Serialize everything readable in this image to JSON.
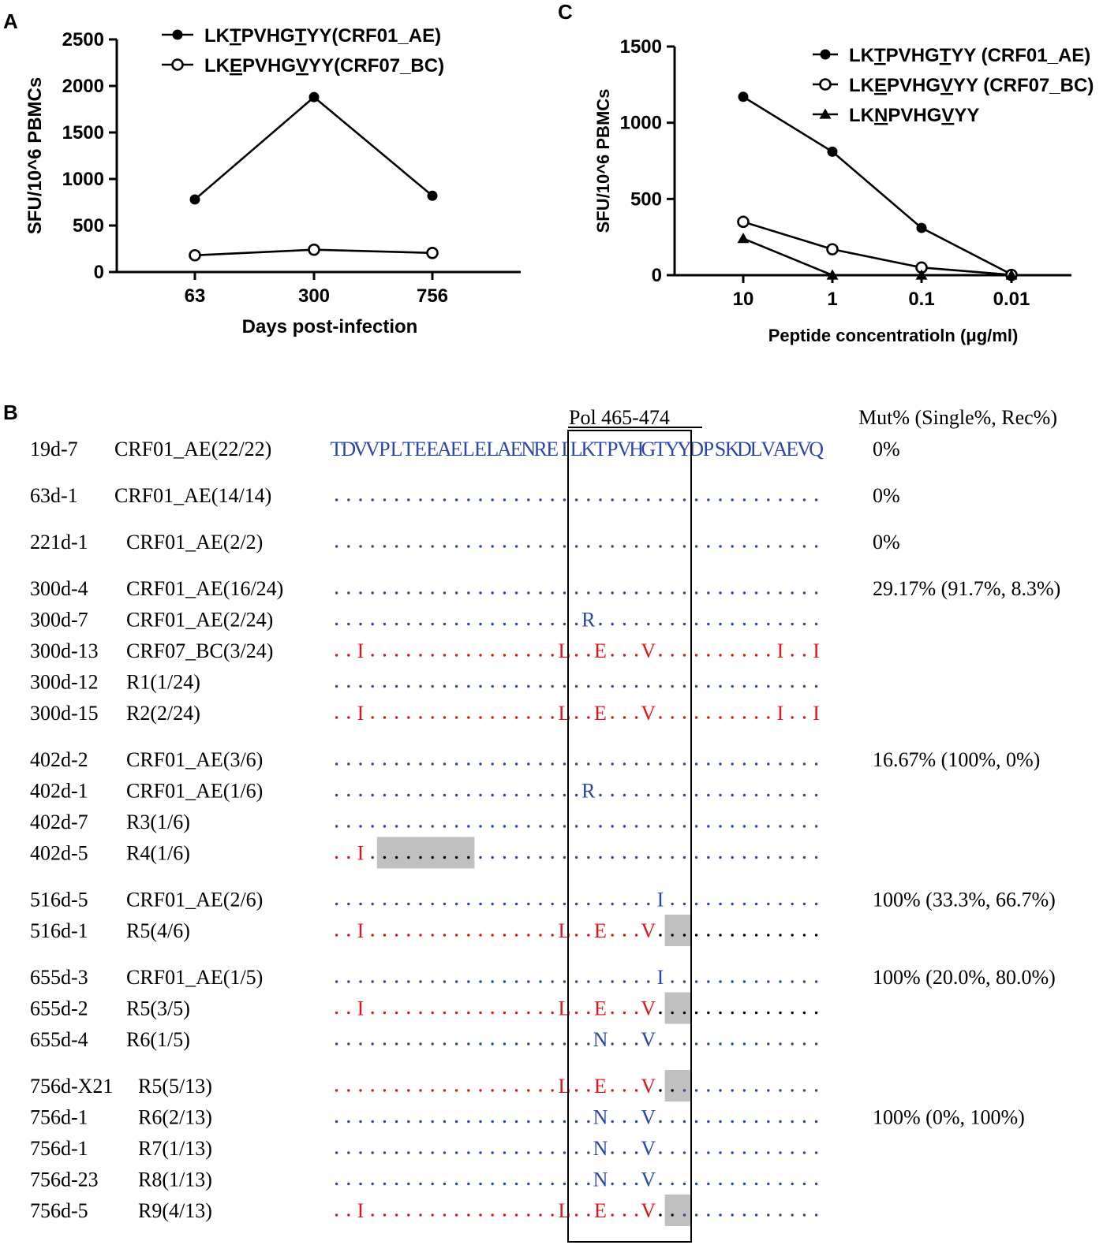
{
  "panel_labels": {
    "a": "A",
    "b": "B",
    "c": "C"
  },
  "colors": {
    "blue": "#2a47a8",
    "red": "#e0141b",
    "black": "#000000",
    "gray": "#c0c0c0"
  },
  "chart_data": [
    {
      "id": "A",
      "type": "line",
      "categories": [
        "63",
        "300",
        "756"
      ],
      "series": [
        {
          "name": "LKTPVHGTYY(CRF01_AE)",
          "marker": "filled-circle",
          "values": [
            780,
            1880,
            820
          ]
        },
        {
          "name": "LKEPVHGVYY(CRF07_BC)",
          "marker": "open-circle",
          "values": [
            180,
            240,
            205
          ]
        }
      ],
      "ylabel": "SFU/10^6 PBMCs",
      "xlabel": "Days post-infection",
      "ylim": [
        0,
        2500
      ],
      "yticks": [
        "0",
        "500",
        "1000",
        "1500",
        "2000",
        "2500"
      ],
      "legend": [
        {
          "prefix": "LK",
          "u1": "T",
          "mid": "PVHG",
          "u2": "T",
          "suffix": "YY(CRF01_AE)"
        },
        {
          "prefix": "LK",
          "u1": "E",
          "mid": "PVHG",
          "u2": "V",
          "suffix": "YY(CRF07_BC)"
        }
      ]
    },
    {
      "id": "C",
      "type": "line",
      "categories": [
        "10",
        "1",
        "0.1",
        "0.01"
      ],
      "series": [
        {
          "name": "LKTPVHGTYY (CRF01_AE)",
          "marker": "filled-circle",
          "values": [
            1170,
            810,
            310,
            5
          ]
        },
        {
          "name": "LKEPVHGVYY (CRF07_BC)",
          "marker": "open-circle",
          "values": [
            350,
            170,
            50,
            2
          ]
        },
        {
          "name": "LKNPVHGVYY",
          "marker": "triangle",
          "values": [
            240,
            0,
            0,
            0
          ]
        }
      ],
      "ylabel": "SFU/10^6 PBMCs",
      "xlabel": "Peptide concentratioln (μg/ml)",
      "ylim": [
        0,
        1500
      ],
      "yticks": [
        "0",
        "500",
        "1000",
        "1500"
      ],
      "legend": [
        {
          "prefix": "LK",
          "u1": "T",
          "mid": "PVHG",
          "u2": "T",
          "suffix": "YY (CRF01_AE)"
        },
        {
          "prefix": "LK",
          "u1": "E",
          "mid": "PVHG",
          "u2": "V",
          "suffix": "YY (CRF07_BC)"
        },
        {
          "prefix": "LK",
          "u1": "N",
          "mid": "PVHG",
          "u2": "V",
          "suffix": "YY"
        }
      ]
    }
  ],
  "alignment": {
    "region_label": "Pol 465-474",
    "mut_header": "Mut% (Single%, Rec%)",
    "reference": "TDVVPLTEEAELELAENREILKTPVHGTYYDPSKDLVAEVQ",
    "groups": [
      {
        "rows": [
          {
            "id": "19d-7",
            "sub": "CRF01_AE(22/22)",
            "ref": true,
            "mut": "0%"
          }
        ]
      },
      {
        "rows": [
          {
            "id": "63d-1",
            "sub": "CRF01_AE(14/14)",
            "muts": {},
            "mut": "0%"
          }
        ]
      },
      {
        "rows": [
          {
            "id": "221d-1",
            "sub": "CRF01_AE(2/2)",
            "muts": {},
            "mut": "0%"
          }
        ]
      },
      {
        "rows": [
          {
            "id": "300d-4",
            "sub": "CRF01_AE(16/24)",
            "muts": {},
            "mut": "29.17% (91.7%, 8.3%)"
          },
          {
            "id": "300d-7",
            "sub": "CRF01_AE(2/24)",
            "muts": {
              "21": "R"
            }
          },
          {
            "id": "300d-13",
            "sub": "CRF07_BC(3/24)",
            "red": [
              0,
              40
            ],
            "muts": {
              "2": "I",
              "19": "L",
              "22": "E",
              "26": "V",
              "37": "I",
              "40": "I"
            }
          },
          {
            "id": "300d-12",
            "sub": "R1(1/24)",
            "muts": {}
          },
          {
            "id": "300d-15",
            "sub": "R2(2/24)",
            "red": [
              0,
              40
            ],
            "muts": {
              "2": "I",
              "19": "L",
              "22": "E",
              "26": "V",
              "37": "I",
              "40": "I"
            }
          }
        ]
      },
      {
        "rows": [
          {
            "id": "402d-2",
            "sub": "CRF01_AE(3/6)",
            "muts": {},
            "mut": "16.67% (100%, 0%)"
          },
          {
            "id": "402d-1",
            "sub": "CRF01_AE(1/6)",
            "muts": {
              "21": "R"
            }
          },
          {
            "id": "402d-7",
            "sub": "R3(1/6)",
            "muts": {}
          },
          {
            "id": "402d-5",
            "sub": "R4(1/6)",
            "red": [
              0,
              2
            ],
            "black": [
              4,
              11
            ],
            "gray": [
              4,
              11
            ],
            "muts": {
              "2": "I"
            }
          }
        ]
      },
      {
        "rows": [
          {
            "id": "516d-5",
            "sub": "CRF01_AE(2/6)",
            "muts": {
              "27": "I"
            },
            "mut": "100% (33.3%, 66.7%)"
          },
          {
            "id": "516d-1",
            "sub": "R5(4/6)",
            "red": [
              0,
              26
            ],
            "black": [
              27,
              40
            ],
            "gray": [
              28,
              29
            ],
            "muts": {
              "2": "I",
              "19": "L",
              "22": "E",
              "26": "V"
            }
          }
        ]
      },
      {
        "rows": [
          {
            "id": "655d-3",
            "sub": "CRF01_AE(1/5)",
            "muts": {
              "27": "I"
            },
            "mut": "100% (20.0%, 80.0%)"
          },
          {
            "id": "655d-2",
            "sub": "R5(3/5)",
            "red": [
              0,
              26
            ],
            "black": [
              27,
              40
            ],
            "gray": [
              28,
              29
            ],
            "muts": {
              "2": "I",
              "19": "L",
              "22": "E",
              "26": "V"
            }
          },
          {
            "id": "655d-4",
            "sub": "R6(1/5)",
            "muts": {
              "22": "N",
              "26": "V"
            }
          }
        ]
      },
      {
        "rows": [
          {
            "id": "756d-X21",
            "sub": "R5(5/13)",
            "red": [
              0,
              26
            ],
            "black": [
              27,
              28
            ],
            "gray": [
              28,
              29
            ],
            "muts": {
              "19": "L",
              "22": "E",
              "26": "V"
            }
          },
          {
            "id": "756d-1",
            "sub": "R6(2/13)",
            "muts": {
              "22": "N",
              "26": "V"
            },
            "mut": "100% (0%, 100%)"
          },
          {
            "id": "756d-1",
            "sub": "R7(1/13)",
            "muts": {
              "22": "N",
              "26": "V"
            }
          },
          {
            "id": "756d-23",
            "sub": "R8(1/13)",
            "muts": {
              "22": "N",
              "26": "V"
            }
          },
          {
            "id": "756d-5",
            "sub": "R9(4/13)",
            "red": [
              0,
              26
            ],
            "black": [
              27,
              28
            ],
            "gray": [
              28,
              29
            ],
            "muts": {
              "2": "I",
              "19": "L",
              "22": "E",
              "26": "V"
            }
          }
        ]
      }
    ]
  }
}
